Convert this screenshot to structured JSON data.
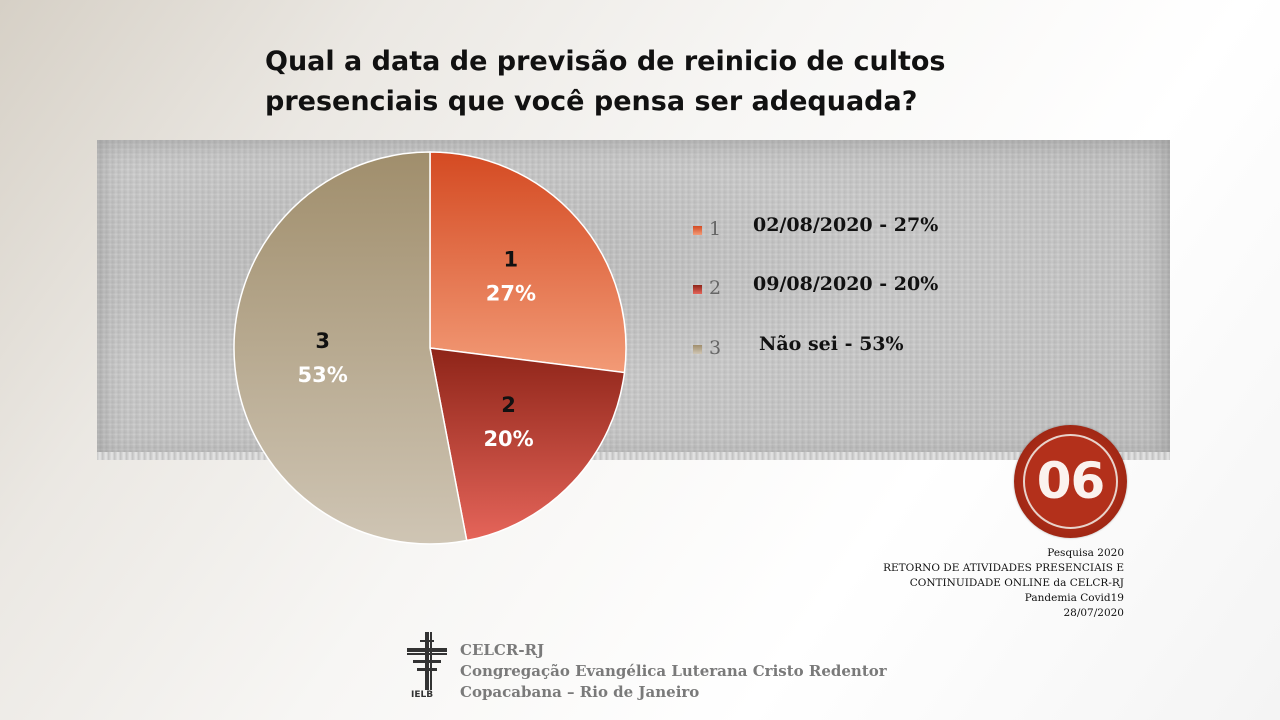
{
  "title": {
    "line1": "Qual a data de previsão de reinicio de cultos",
    "line2": "presenciais que você pensa ser adequada?"
  },
  "chart_data": {
    "type": "pie",
    "title": "Qual a data de previsão de reinicio de cultos presenciais que você pensa ser adequada?",
    "slices": [
      {
        "label": "1",
        "value": 27,
        "value_label": "27%",
        "legend": "02/08/2020 - 27%",
        "color_top": "#d44a22",
        "color_bottom": "#f29a76"
      },
      {
        "label": "2",
        "value": 20,
        "value_label": "20%",
        "legend": "09/08/2020 - 20%",
        "color_top": "#8e2418",
        "color_bottom": "#e5655a"
      },
      {
        "label": "3",
        "value": 53,
        "value_label": "53%",
        "legend": "Não sei  - 53%",
        "color_top": "#a08e6c",
        "color_bottom": "#cfc5b4"
      }
    ],
    "legend_position": "right"
  },
  "badge": {
    "number": "06",
    "color": "#b3301b"
  },
  "survey_info": {
    "line1": "Pesquisa 2020",
    "line2": "RETORNO DE ATIVIDADES PRESENCIAIS E",
    "line3": "CONTINUIDADE  ONLINE da CELCR-RJ",
    "line4": "Pandemia  Covid19",
    "line5": "28/07/2020"
  },
  "logo": {
    "icon": "cross-logo-icon",
    "text": "IELB"
  },
  "footer": {
    "line1": "CELCR-RJ",
    "line2": "Congregação Evangélica Luterana Cristo Redentor",
    "line3": "Copacabana – Rio de Janeiro"
  }
}
